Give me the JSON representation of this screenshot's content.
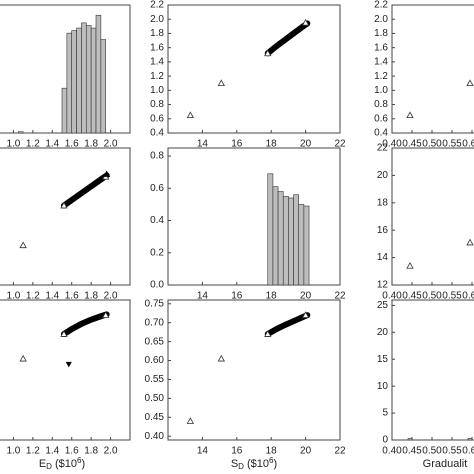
{
  "chart_data": [
    {
      "type": "histogram",
      "xlim": [
        0.8,
        2.2
      ],
      "ylim": [
        0,
        1
      ],
      "xticks": [
        {
          "value": 1,
          "label": "1.0"
        },
        1.2,
        1.4,
        1.6,
        1.8,
        {
          "value": 2,
          "label": "2.0"
        }
      ],
      "bins": [
        1.05,
        1.1,
        1.15,
        1.2,
        1.25,
        1.3,
        1.35,
        1.4,
        1.45,
        1.5,
        1.55,
        1.6,
        1.65,
        1.7,
        1.75,
        1.8,
        1.85,
        1.9,
        1.95
      ],
      "counts": [
        0.01,
        0,
        0,
        0,
        0,
        0,
        0,
        0,
        0,
        0.35,
        0.78,
        0.8,
        0.82,
        0.86,
        0.84,
        0.82,
        0.92,
        0.73
      ],
      "color": "#bdbdbd"
    },
    {
      "type": "scatter",
      "xlim": [
        12,
        22
      ],
      "ylim": [
        0.4,
        2.2
      ],
      "xticks": [
        14,
        16,
        18,
        20,
        22
      ],
      "yticks": [
        0.4,
        0.6,
        0.8,
        {
          "value": 1,
          "label": "1.0"
        },
        1.2,
        1.4,
        1.6,
        1.8,
        {
          "value": 2,
          "label": "2.0"
        },
        2.2
      ],
      "points": {
        "x": [
          13.3,
          15.1,
          17.8,
          20
        ],
        "y": [
          0.65,
          1.1,
          1.52,
          1.95
        ]
      },
      "curve": {
        "x": [
          17.8,
          18.3,
          18.8,
          19.3,
          19.8,
          20.1
        ],
        "y": [
          1.52,
          1.62,
          1.71,
          1.8,
          1.89,
          1.94
        ]
      }
    },
    {
      "type": "scatter",
      "xlim": [
        0.4,
        0.8
      ],
      "ylim": [
        0.4,
        2.2
      ],
      "xticks": [
        {
          "value": 0.4,
          "label": "0.40"
        },
        0.45,
        {
          "value": 0.5,
          "label": "0.50"
        },
        0.55,
        {
          "value": 0.6,
          "label": "0.60"
        }
      ],
      "yticks": [
        0.4,
        0.6,
        0.8,
        {
          "value": 1,
          "label": "1.0"
        },
        1.2,
        1.4,
        1.6,
        1.8,
        {
          "value": 2,
          "label": "2.0"
        },
        2.2
      ],
      "points": {
        "x": [
          0.445,
          0.595
        ],
        "y": [
          0.65,
          1.1
        ]
      }
    },
    {
      "type": "scatter",
      "xlim": [
        0.8,
        2.2
      ],
      "ylim": [
        12,
        22
      ],
      "xticks": [
        {
          "value": 1,
          "label": "1.0"
        },
        1.2,
        1.4,
        1.6,
        1.8,
        {
          "value": 2,
          "label": "2.0"
        }
      ],
      "points": {
        "x": [
          1.1,
          1.52,
          1.95
        ],
        "y": [
          14.9,
          17.8,
          19.9
        ]
      },
      "curve": {
        "x": [
          1.52,
          1.6,
          1.7,
          1.8,
          1.9,
          1.96
        ],
        "y": [
          17.8,
          18.2,
          18.7,
          19.2,
          19.7,
          20.0
        ]
      },
      "filled": {
        "x": [
          1.96
        ],
        "y": [
          20.1
        ]
      }
    },
    {
      "type": "histogram",
      "xlim": [
        12,
        22
      ],
      "ylim": [
        0,
        0.85
      ],
      "xticks": [
        14,
        16,
        18,
        20,
        22
      ],
      "yticks": [
        {
          "value": 0,
          "label": "0.0"
        },
        0.2,
        0.4,
        0.6,
        0.8
      ],
      "bins": [
        17.8,
        18.1,
        18.4,
        18.7,
        19.0,
        19.3,
        19.6,
        19.9,
        20.2
      ],
      "counts": [
        0.69,
        0.61,
        0.58,
        0.55,
        0.54,
        0.56,
        0.5,
        0.49
      ],
      "color": "#bdbdbd"
    },
    {
      "type": "scatter",
      "xlim": [
        0.4,
        0.8
      ],
      "ylim": [
        12,
        22
      ],
      "xticks": [
        {
          "value": 0.4,
          "label": "0.40"
        },
        0.45,
        {
          "value": 0.5,
          "label": "0.50"
        },
        0.55,
        {
          "value": 0.6,
          "label": "0.60"
        }
      ],
      "yticks": [
        12,
        14,
        16,
        18,
        20,
        22
      ],
      "points": {
        "x": [
          0.445,
          0.595
        ],
        "y": [
          13.4,
          15.1
        ]
      }
    },
    {
      "type": "scatter",
      "xlim": [
        0.8,
        2.2
      ],
      "ylim": [
        0.39,
        0.76
      ],
      "xticks": [
        {
          "value": 1,
          "label": "1.0"
        },
        1.2,
        1.4,
        1.6,
        1.8,
        {
          "value": 2,
          "label": "2.0"
        }
      ],
      "points": {
        "x": [
          1.1,
          1.52,
          1.95
        ],
        "y": [
          0.605,
          0.67,
          0.72
        ]
      },
      "curve": {
        "x": [
          1.52,
          1.6,
          1.7,
          1.8,
          1.9,
          1.96
        ],
        "y": [
          0.67,
          0.683,
          0.697,
          0.708,
          0.717,
          0.722
        ]
      },
      "filled_down": {
        "x": [
          1.57
        ],
        "y": [
          0.59
        ]
      }
    },
    {
      "type": "scatter",
      "xlim": [
        12,
        22
      ],
      "ylim": [
        0.39,
        0.76
      ],
      "xticks": [
        14,
        16,
        18,
        20,
        22
      ],
      "yticks": [
        {
          "value": 0.4,
          "label": "0.40"
        },
        0.45,
        {
          "value": 0.5,
          "label": "0.50"
        },
        0.55,
        {
          "value": 0.6,
          "label": "0.60"
        },
        0.65,
        {
          "value": 0.7,
          "label": "0.70"
        },
        0.75
      ],
      "points": {
        "x": [
          13.3,
          15.1,
          17.8,
          20
        ],
        "y": [
          0.44,
          0.605,
          0.67,
          0.72
        ]
      },
      "curve": {
        "x": [
          17.8,
          18.3,
          18.8,
          19.3,
          19.8,
          20.1
        ],
        "y": [
          0.67,
          0.683,
          0.694,
          0.704,
          0.714,
          0.72
        ]
      }
    },
    {
      "type": "histogram",
      "xlim": [
        0.4,
        0.8
      ],
      "ylim": [
        0,
        26
      ],
      "xticks": [
        {
          "value": 0.4,
          "label": "0.40"
        },
        0.45,
        {
          "value": 0.5,
          "label": "0.50"
        },
        0.55,
        {
          "value": 0.6,
          "label": "0.60"
        }
      ],
      "yticks": [
        0,
        5,
        10,
        15,
        20,
        25
      ],
      "bins": [
        0.44,
        0.45,
        0.59,
        0.6
      ],
      "counts": [
        0.3,
        0,
        0.3
      ],
      "color": "#bdbdbd"
    }
  ],
  "axis_titles": [
    {
      "base": "E",
      "sub": "D",
      "unit": " ($10",
      "sup": "6",
      "end": ")"
    },
    {
      "base": "S",
      "sub": "D",
      "unit": " ($10",
      "sup": "6",
      "end": ")"
    },
    {
      "base": "Gradualit"
    }
  ]
}
